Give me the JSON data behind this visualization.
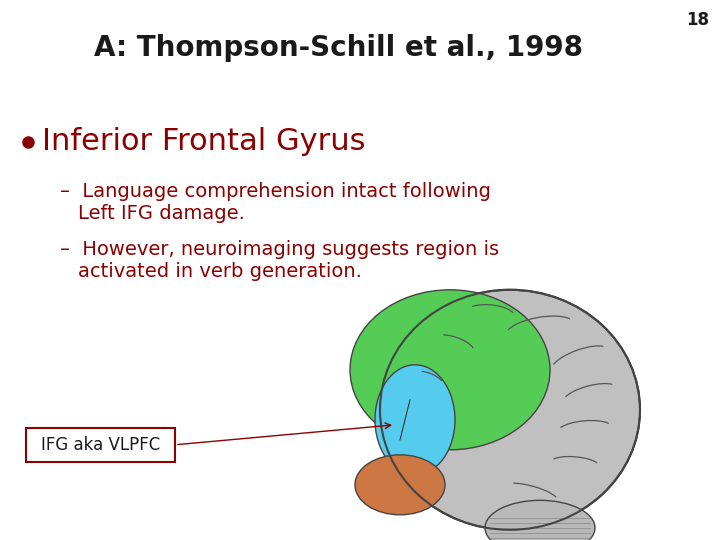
{
  "slide_number": "18",
  "header_bg_color": "#b3b3b3",
  "header_text": "A: Thompson-Schill et al., 1998",
  "header_text_color": "#1a1a1a",
  "header_font_size": 20,
  "slide_bg_color": "#ffffff",
  "body_bg_color": "#ffffff",
  "bullet_color": "#8b0000",
  "bullet_text": "Inferior Frontal Gyrus",
  "bullet_font_size": 22,
  "sub_bullet_color": "#8b0000",
  "sub_bullet_font_size": 14,
  "sub_bullet_1_line1": "Language comprehension intact following",
  "sub_bullet_1_line2": "Left IFG damage.",
  "sub_bullet_2_line1": "However, neuroimaging suggests region is",
  "sub_bullet_2_line2": "activated in verb generation.",
  "label_text": "IFG aka VLPFC",
  "label_font_size": 12,
  "label_text_color": "#1a1a1a",
  "label_border_color": "#8b0000",
  "slide_number_color": "#1a1a1a",
  "slide_number_font_size": 12,
  "logo_color": "#8b0000",
  "brain_gray": "#c0c0c0",
  "brain_green": "#55cc55",
  "brain_cyan": "#55ccee",
  "brain_orange": "#cc7744",
  "brain_edge": "#444444"
}
